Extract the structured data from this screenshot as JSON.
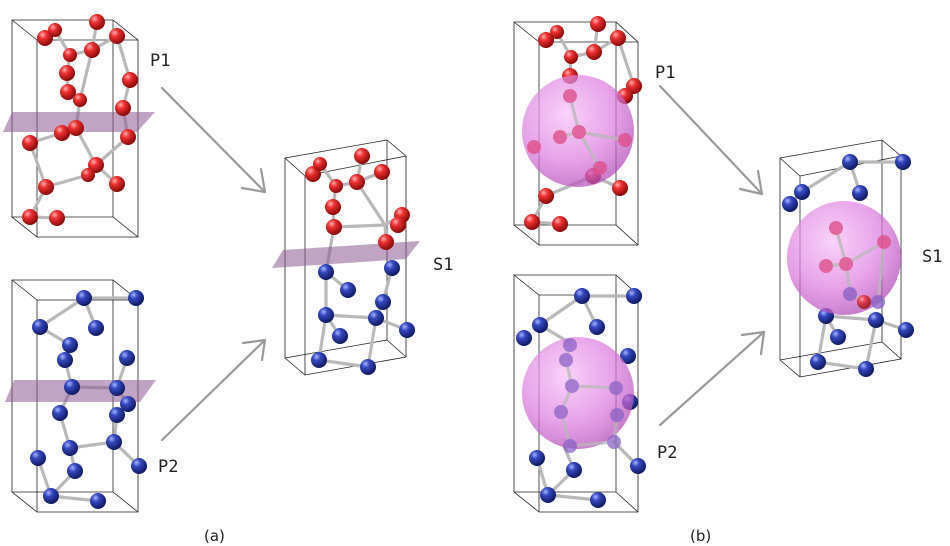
{
  "labels": {
    "a_p1": "P1",
    "a_p2": "P2",
    "a_s1": "S1",
    "b_p1": "P1",
    "b_p2": "P2",
    "b_s1": "S1"
  },
  "captions": {
    "a": "(a)",
    "b": "(b)"
  },
  "colors": {
    "red_atom": "#e02020",
    "blue_atom": "#2a3fb0",
    "plane": "#8e5a92",
    "sphere": "#e070e0",
    "arrow": "#9a9a9a"
  }
}
